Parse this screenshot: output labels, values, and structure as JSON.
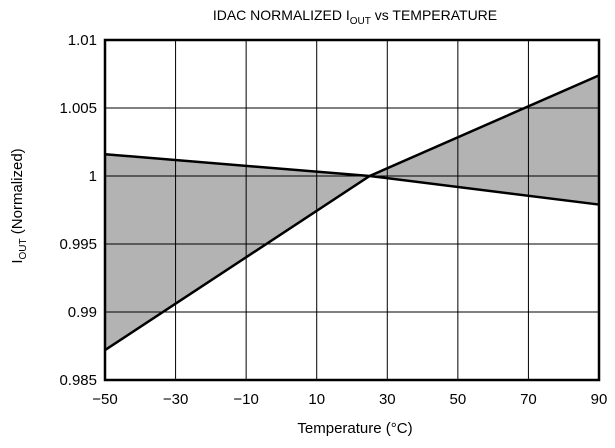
{
  "chart_data": {
    "type": "area",
    "title_main": "IDAC NORMALIZED I",
    "title_sub": "OUT",
    "title_suffix": " vs TEMPERATURE",
    "xlabel": "Temperature (°C)",
    "ylabel_main": "I",
    "ylabel_sub": "OUT",
    "ylabel_suffix": " (Normalized)",
    "xlim": [
      -50,
      90
    ],
    "ylim": [
      0.985,
      1.01
    ],
    "x_ticks": [
      -50,
      -30,
      -10,
      10,
      30,
      50,
      70,
      90
    ],
    "x_tick_labels": [
      "−50",
      "−30",
      "−10",
      "10",
      "30",
      "50",
      "70",
      "90"
    ],
    "y_ticks": [
      0.985,
      0.99,
      0.995,
      1,
      1.005,
      1.01
    ],
    "y_tick_labels": [
      "0.985",
      "0.99",
      "0.995",
      "1",
      "1.005",
      "1.01"
    ],
    "grid": true,
    "series": [
      {
        "x": [
          -50,
          25,
          90
        ],
        "y": [
          0.9872,
          1.0,
          1.0074
        ]
      },
      {
        "x": [
          -50,
          25,
          90
        ],
        "y": [
          1.0016,
          1.0,
          0.9979
        ]
      }
    ],
    "shaded_region": "between the two lines",
    "colors": {
      "fill": "#b3b3b3",
      "line": "#000000",
      "grid": "#000000"
    }
  }
}
